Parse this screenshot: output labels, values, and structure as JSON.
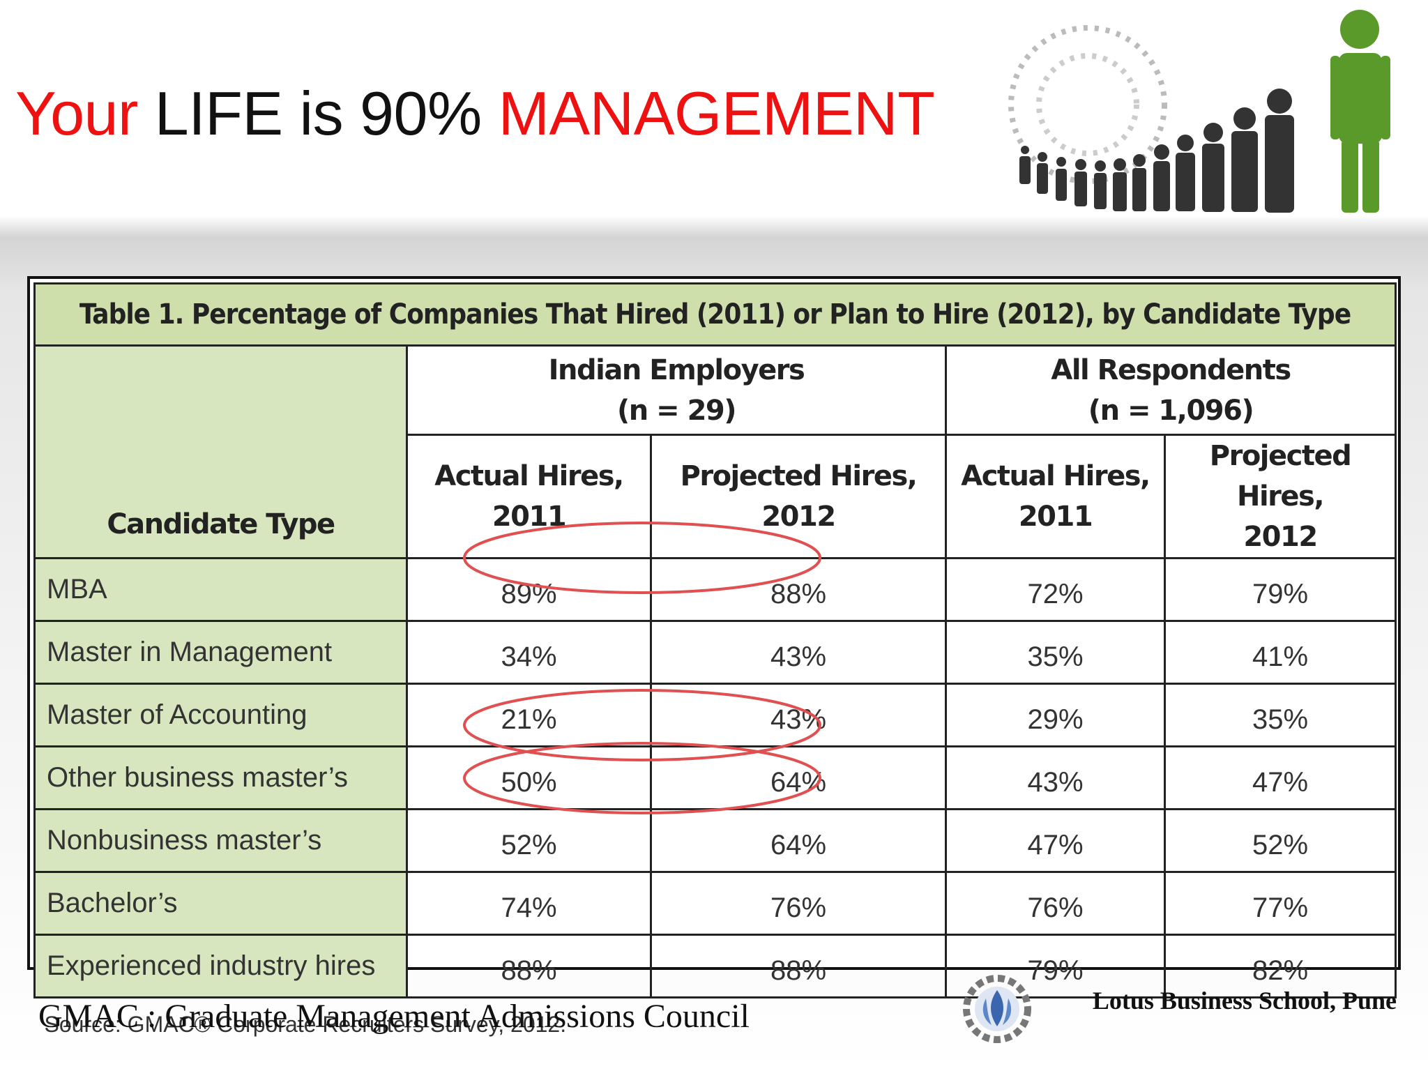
{
  "header": {
    "title": {
      "part1": "Your",
      "part2": "LIFE is 90%",
      "part3": "MANAGEMENT"
    }
  },
  "table": {
    "title": "Table 1. Percentage of Companies That Hired (2011) or Plan to Hire (2012), by Candidate Type",
    "corner_header": "Candidate Type",
    "groups": [
      {
        "name": "Indian Employers",
        "n": "(n = 29)",
        "columns": [
          [
            "Actual Hires,",
            "2011"
          ],
          [
            "Projected Hires,",
            "2012"
          ]
        ]
      },
      {
        "name": "All Respondents",
        "n": "(n = 1,096)",
        "columns": [
          [
            "Actual Hires,",
            "2011"
          ],
          [
            "Projected Hires,",
            "2012"
          ]
        ]
      }
    ],
    "rows": [
      [
        "MBA",
        "89%",
        "88%",
        "72%",
        "79%"
      ],
      [
        "Master in Management",
        "34%",
        "43%",
        "35%",
        "41%"
      ],
      [
        "Master of Accounting",
        "21%",
        "43%",
        "29%",
        "35%"
      ],
      [
        "Other business master’s",
        "50%",
        "64%",
        "43%",
        "47%"
      ],
      [
        "Nonbusiness master’s",
        "52%",
        "64%",
        "47%",
        "52%"
      ],
      [
        "Bachelor’s",
        "74%",
        "76%",
        "76%",
        "77%"
      ],
      [
        "Experienced industry hires",
        "88%",
        "88%",
        "79%",
        "82%"
      ]
    ],
    "source": "Source: GMAC® Corporate Recruiters Survey, 2012."
  },
  "footer": {
    "note": "GMAC : Graduate Management Admissions Council",
    "school": "Lotus Business School, Pune"
  }
}
